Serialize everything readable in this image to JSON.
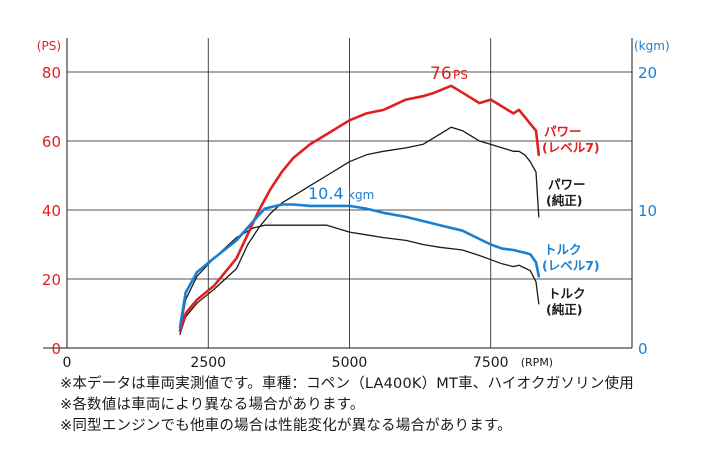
{
  "chart_data": {
    "type": "line",
    "x_axis": {
      "label": "(RPM)",
      "range": [
        0,
        10000
      ],
      "ticks": [
        0,
        2500,
        5000,
        7500
      ]
    },
    "y_axis_left": {
      "unit": "(PS)",
      "range": [
        0,
        80
      ],
      "ticks": [
        0,
        20,
        40,
        60,
        80
      ],
      "color": "#e02020"
    },
    "y_axis_right": {
      "unit": "(kgm)",
      "range": [
        0,
        20
      ],
      "ticks": [
        0,
        10,
        20
      ],
      "color": "#1a7fd0"
    },
    "grid": true,
    "series": [
      {
        "id": "power_level7",
        "name": "パワー",
        "name2": "(レベル7)",
        "axis": "left",
        "color": "#e02020",
        "x": [
          2000,
          2100,
          2300,
          2600,
          3000,
          3200,
          3400,
          3600,
          3800,
          4000,
          4300,
          4600,
          5000,
          5300,
          5600,
          6000,
          6300,
          6500,
          6800,
          7000,
          7200,
          7300,
          7500,
          7700,
          7900,
          8000,
          8100,
          8200,
          8300,
          8350
        ],
        "y": [
          5,
          10,
          14,
          18,
          26,
          33,
          40,
          46,
          51,
          55,
          59,
          62,
          66,
          68,
          69,
          72,
          73,
          74,
          76,
          74,
          72,
          71,
          72,
          70,
          68,
          69,
          67,
          65,
          63,
          56
        ]
      },
      {
        "id": "power_stock",
        "name": "パワー",
        "name2": "(純正)",
        "axis": "left",
        "color": "#1a1a1a",
        "x": [
          2000,
          2100,
          2300,
          2600,
          3000,
          3200,
          3400,
          3600,
          3800,
          4000,
          4300,
          4600,
          5000,
          5300,
          5600,
          6000,
          6300,
          6500,
          6800,
          7000,
          7200,
          7300,
          7500,
          7700,
          7900,
          8000,
          8100,
          8200,
          8300,
          8350
        ],
        "y": [
          4,
          9,
          13,
          17,
          23,
          30,
          35,
          39,
          42,
          44,
          47,
          50,
          54,
          56,
          57,
          58,
          59,
          61,
          64,
          63,
          61,
          60,
          59,
          58,
          57,
          57,
          56,
          54,
          51,
          38
        ]
      },
      {
        "id": "torque_level7",
        "name": "トルク",
        "name2": "(レベル7)",
        "axis": "right",
        "color": "#1a7fd0",
        "x": [
          2000,
          2100,
          2300,
          2600,
          3000,
          3300,
          3500,
          3800,
          4000,
          4300,
          4600,
          5000,
          5300,
          5600,
          6000,
          6300,
          6600,
          7000,
          7300,
          7500,
          7700,
          7900,
          8000,
          8100,
          8200,
          8300,
          8350
        ],
        "y": [
          1.5,
          4,
          5.5,
          6.5,
          7.8,
          9.2,
          10.1,
          10.4,
          10.4,
          10.3,
          10.3,
          10.3,
          10.1,
          9.8,
          9.5,
          9.2,
          8.9,
          8.5,
          7.9,
          7.5,
          7.2,
          7.1,
          7.0,
          6.9,
          6.8,
          6.2,
          5.2
        ]
      },
      {
        "id": "torque_stock",
        "name": "トルク",
        "name2": "(純正)",
        "axis": "right",
        "color": "#1a1a1a",
        "x": [
          2000,
          2100,
          2300,
          2600,
          3000,
          3300,
          3500,
          3800,
          4000,
          4300,
          4600,
          5000,
          5300,
          5600,
          6000,
          6300,
          6600,
          7000,
          7300,
          7500,
          7700,
          7900,
          8000,
          8100,
          8200,
          8300,
          8350
        ],
        "y": [
          1.2,
          3.5,
          5.2,
          6.5,
          8.0,
          8.7,
          8.9,
          8.9,
          8.9,
          8.9,
          8.9,
          8.4,
          8.2,
          8.0,
          7.8,
          7.5,
          7.3,
          7.1,
          6.7,
          6.4,
          6.1,
          5.9,
          6.0,
          5.8,
          5.6,
          4.8,
          3.2
        ]
      }
    ],
    "annotations": [
      {
        "id": "peak_power",
        "text": "76",
        "unit": "PS",
        "color": "#e02020"
      },
      {
        "id": "peak_torque",
        "text": "10.4",
        "unit": "kgm",
        "color": "#1a7fd0"
      }
    ]
  },
  "notes": [
    "※本データは車両実測値です。車種：コペン（LA400K）MT車、ハイオクガソリン使用",
    "※各数値は車両により異なる場合があります。",
    "※同型エンジンでも他車の場合は性能変化が異なる場合があります。"
  ]
}
